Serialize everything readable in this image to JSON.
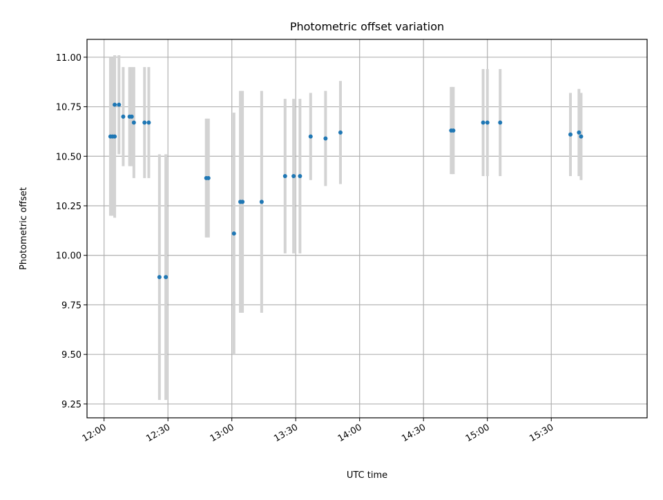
{
  "chart_data": {
    "type": "scatter",
    "title": "Photometric offset variation",
    "xlabel": "UTC time",
    "ylabel": "Photometric offset",
    "xlim": [
      "11:52",
      "16:15"
    ],
    "ylim": [
      9.18,
      11.09
    ],
    "x_ticks": [
      "12:00",
      "12:30",
      "13:00",
      "13:30",
      "14:00",
      "14:30",
      "15:00",
      "15:30"
    ],
    "y_ticks": [
      9.25,
      9.5,
      9.75,
      10.0,
      10.25,
      10.5,
      10.75,
      11.0
    ],
    "y_tick_labels": [
      "9.25",
      "9.50",
      "9.75",
      "10.00",
      "10.25",
      "10.50",
      "10.75",
      "11.00"
    ],
    "grid": true,
    "marker_color": "#1f77b4",
    "errorbar_color": "#d3d3d3",
    "points": [
      {
        "x": "12:03",
        "y": 10.6,
        "err": 0.4
      },
      {
        "x": "12:04",
        "y": 10.6,
        "err": 0.4
      },
      {
        "x": "12:05",
        "y": 10.76,
        "err": 0.25
      },
      {
        "x": "12:05",
        "y": 10.6,
        "err": 0.41
      },
      {
        "x": "12:07",
        "y": 10.76,
        "err": 0.25
      },
      {
        "x": "12:09",
        "y": 10.7,
        "err": 0.25
      },
      {
        "x": "12:12",
        "y": 10.7,
        "err": 0.25
      },
      {
        "x": "12:13",
        "y": 10.7,
        "err": 0.25
      },
      {
        "x": "12:14",
        "y": 10.67,
        "err": 0.28
      },
      {
        "x": "12:19",
        "y": 10.67,
        "err": 0.28
      },
      {
        "x": "12:21",
        "y": 10.67,
        "err": 0.28
      },
      {
        "x": "12:26",
        "y": 9.89,
        "err": 0.62
      },
      {
        "x": "12:29",
        "y": 9.89,
        "err": 0.62
      },
      {
        "x": "12:48",
        "y": 10.39,
        "err": 0.3
      },
      {
        "x": "12:49",
        "y": 10.39,
        "err": 0.3
      },
      {
        "x": "13:01",
        "y": 10.11,
        "err": 0.61
      },
      {
        "x": "13:04",
        "y": 10.27,
        "err": 0.56
      },
      {
        "x": "13:05",
        "y": 10.27,
        "err": 0.56
      },
      {
        "x": "13:14",
        "y": 10.27,
        "err": 0.56
      },
      {
        "x": "13:25",
        "y": 10.4,
        "err": 0.39
      },
      {
        "x": "13:29",
        "y": 10.4,
        "err": 0.39
      },
      {
        "x": "13:32",
        "y": 10.4,
        "err": 0.39
      },
      {
        "x": "13:37",
        "y": 10.6,
        "err": 0.22
      },
      {
        "x": "13:44",
        "y": 10.59,
        "err": 0.24
      },
      {
        "x": "13:51",
        "y": 10.62,
        "err": 0.26
      },
      {
        "x": "14:43",
        "y": 10.63,
        "err": 0.22
      },
      {
        "x": "14:44",
        "y": 10.63,
        "err": 0.22
      },
      {
        "x": "14:58",
        "y": 10.67,
        "err": 0.27
      },
      {
        "x": "15:00",
        "y": 10.67,
        "err": 0.27
      },
      {
        "x": "15:06",
        "y": 10.67,
        "err": 0.27
      },
      {
        "x": "15:39",
        "y": 10.61,
        "err": 0.21
      },
      {
        "x": "15:43",
        "y": 10.62,
        "err": 0.22
      },
      {
        "x": "15:44",
        "y": 10.6,
        "err": 0.22
      }
    ]
  }
}
